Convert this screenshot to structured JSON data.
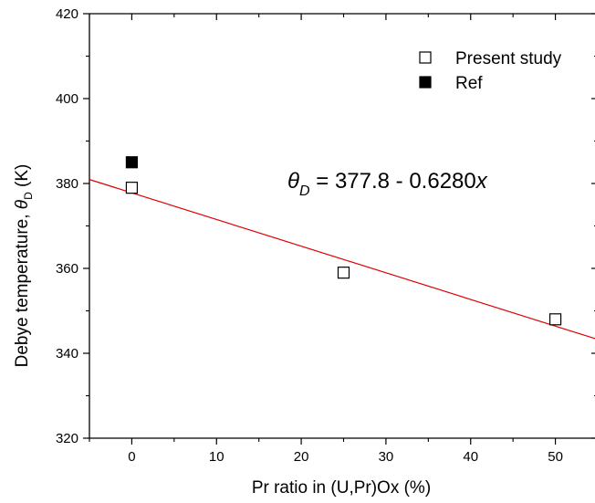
{
  "chart_data": {
    "type": "scatter",
    "title": "",
    "xlabel": "Pr ratio in (U,Pr)Ox (%)",
    "ylabel": {
      "prefix": "Debye temperature, ",
      "symbol": "θ",
      "subscript": "D",
      "suffix": " (K)"
    },
    "xlim": [
      -5,
      55
    ],
    "ylim": [
      320,
      420
    ],
    "x_ticks": [
      0,
      10,
      20,
      30,
      40,
      50
    ],
    "y_ticks": [
      320,
      340,
      360,
      380,
      400,
      420
    ],
    "grid": false,
    "legend_position": "top-right",
    "series": [
      {
        "name": "Present study",
        "marker": "open-square",
        "color": "#000000",
        "points": [
          {
            "x": 0,
            "y": 379
          },
          {
            "x": 25,
            "y": 359
          },
          {
            "x": 50,
            "y": 348
          }
        ]
      },
      {
        "name": "Ref",
        "marker": "filled-square",
        "color": "#000000",
        "points": [
          {
            "x": 0,
            "y": 385
          }
        ]
      }
    ],
    "fit_line": {
      "intercept": 377.8,
      "slope": -0.628,
      "color": "#e00000",
      "x_range": [
        -5,
        55
      ]
    },
    "annotation": {
      "symbol": "θ",
      "subscript": "D",
      "body": " = 377.8 - 0.6280",
      "var": "x"
    }
  }
}
